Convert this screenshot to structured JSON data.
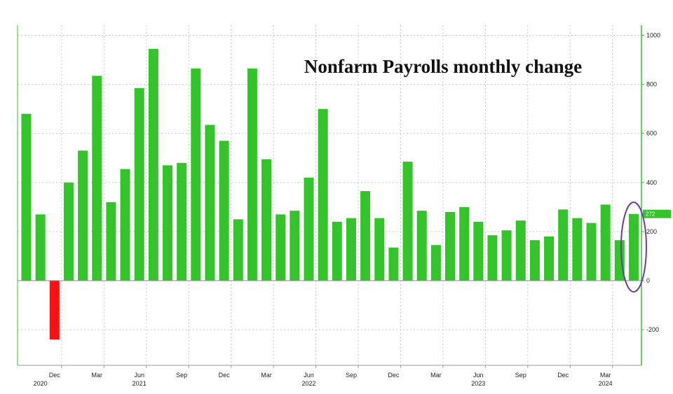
{
  "chart_data": {
    "type": "bar",
    "title": "Nonfarm Payrolls monthly change",
    "xlabel": "",
    "ylabel": "",
    "ylim": [
      -300,
      1050
    ],
    "y_ticks": [
      1000,
      800,
      600,
      400,
      200,
      0,
      -200
    ],
    "grid": true,
    "categories": [
      "Oct 2020",
      "Nov 2020",
      "Dec 2020",
      "Jan 2021",
      "Feb 2021",
      "Mar 2021",
      "Apr 2021",
      "May 2021",
      "Jun 2021",
      "Jul 2021",
      "Aug 2021",
      "Sep 2021",
      "Oct 2021",
      "Nov 2021",
      "Dec 2021",
      "Jan 2022",
      "Feb 2022",
      "Mar 2022",
      "Apr 2022",
      "May 2022",
      "Jun 2022",
      "Jul 2022",
      "Aug 2022",
      "Sep 2022",
      "Oct 2022",
      "Nov 2022",
      "Dec 2022",
      "Jan 2023",
      "Feb 2023",
      "Mar 2023",
      "Apr 2023",
      "May 2023",
      "Jun 2023",
      "Jul 2023",
      "Aug 2023",
      "Sep 2023",
      "Oct 2023",
      "Nov 2023",
      "Dec 2023",
      "Jan 2024",
      "Feb 2024",
      "Mar 2024",
      "Apr 2024",
      "May 2024"
    ],
    "values": [
      680,
      270,
      -240,
      400,
      530,
      835,
      320,
      455,
      785,
      945,
      470,
      480,
      865,
      635,
      570,
      250,
      865,
      495,
      270,
      285,
      420,
      700,
      240,
      255,
      365,
      255,
      135,
      485,
      285,
      145,
      280,
      300,
      240,
      185,
      205,
      245,
      165,
      180,
      290,
      255,
      235,
      310,
      165,
      272
    ],
    "colors": {
      "positive": "#33c42a",
      "negative": "#ff1010",
      "grid": "#c8c8c8",
      "axis": "#33c42a",
      "highlight": "#6a3fa0"
    },
    "last_value_label": "272",
    "x_ticks": [
      {
        "index": 2,
        "label": "Dec"
      },
      {
        "index": 5,
        "label": "Mar"
      },
      {
        "index": 8,
        "label": "Jun"
      },
      {
        "index": 11,
        "label": "Sep"
      },
      {
        "index": 14,
        "label": "Dec"
      },
      {
        "index": 17,
        "label": "Mar"
      },
      {
        "index": 20,
        "label": "Jun"
      },
      {
        "index": 23,
        "label": "Sep"
      },
      {
        "index": 26,
        "label": "Dec"
      },
      {
        "index": 29,
        "label": "Mar"
      },
      {
        "index": 32,
        "label": "Jun"
      },
      {
        "index": 35,
        "label": "Sep"
      },
      {
        "index": 38,
        "label": "Dec"
      },
      {
        "index": 41,
        "label": "Mar"
      }
    ],
    "year_labels": [
      {
        "index": 1,
        "label": "2020"
      },
      {
        "index": 8,
        "label": "2021"
      },
      {
        "index": 20,
        "label": "2022"
      },
      {
        "index": 32,
        "label": "2023"
      },
      {
        "index": 41,
        "label": "2024"
      }
    ],
    "highlighted_index": 43
  }
}
